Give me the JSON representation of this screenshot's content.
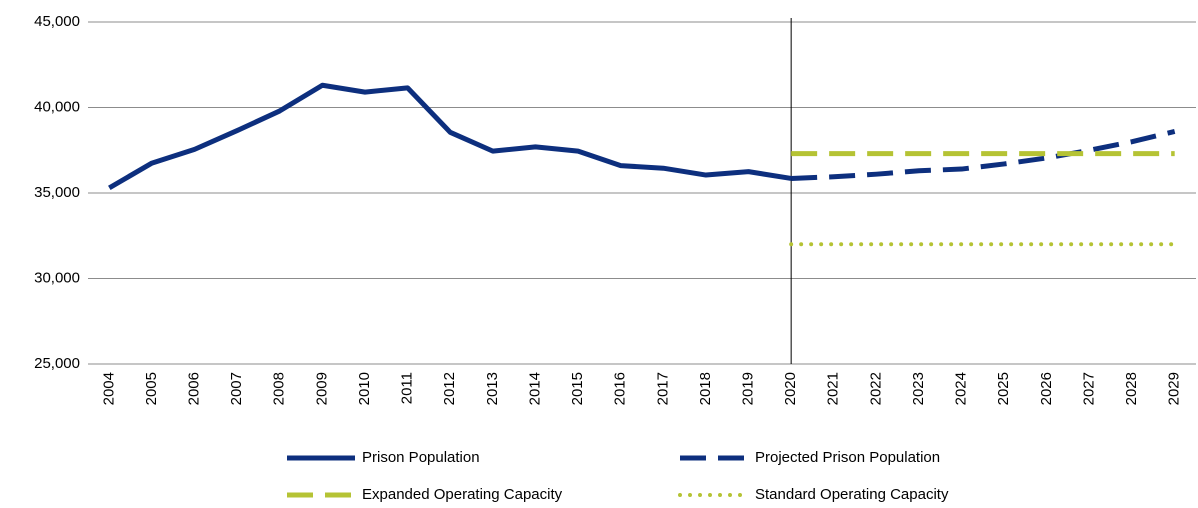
{
  "chart_data": {
    "type": "line",
    "categories": [
      "2004",
      "2005",
      "2006",
      "2007",
      "2008",
      "2009",
      "2010",
      "2011",
      "2012",
      "2013",
      "2014",
      "2015",
      "2016",
      "2017",
      "2018",
      "2019",
      "2020",
      "2021",
      "2022",
      "2023",
      "2024",
      "2025",
      "2026",
      "2027",
      "2028",
      "2029"
    ],
    "series": [
      {
        "name": "Prison Population",
        "color": "#0d2f7e",
        "line_style": "solid",
        "values": [
          35300,
          36750,
          37550,
          38650,
          39800,
          41300,
          40900,
          41150,
          38550,
          37450,
          37700,
          37450,
          36600,
          36450,
          36050,
          36250,
          35850,
          null,
          null,
          null,
          null,
          null,
          null,
          null,
          null,
          null
        ]
      },
      {
        "name": "Projected Prison Population",
        "color": "#0d2f7e",
        "line_style": "dashed",
        "values": [
          null,
          null,
          null,
          null,
          null,
          null,
          null,
          null,
          null,
          null,
          null,
          null,
          null,
          null,
          null,
          null,
          35850,
          35950,
          36100,
          36300,
          36400,
          36700,
          37050,
          37500,
          38000,
          38600
        ]
      },
      {
        "name": "Expanded Operating Capacity",
        "color": "#b5c334",
        "line_style": "dashed",
        "values": [
          null,
          null,
          null,
          null,
          null,
          null,
          null,
          null,
          null,
          null,
          null,
          null,
          null,
          null,
          null,
          null,
          37300,
          37300,
          37300,
          37300,
          37300,
          37300,
          37300,
          37300,
          37300,
          37300
        ]
      },
      {
        "name": "Standard Operating Capacity",
        "color": "#b5c334",
        "line_style": "dotted",
        "values": [
          null,
          null,
          null,
          null,
          null,
          null,
          null,
          null,
          null,
          null,
          null,
          null,
          null,
          null,
          null,
          null,
          32000,
          32000,
          32000,
          32000,
          32000,
          32000,
          32000,
          32000,
          32000,
          32000
        ]
      }
    ],
    "ylim": [
      25000,
      45000
    ],
    "yticks": [
      {
        "value": 25000,
        "label": "25,000"
      },
      {
        "value": 30000,
        "label": "30,000"
      },
      {
        "value": 35000,
        "label": "35,000"
      },
      {
        "value": 40000,
        "label": "40,000"
      },
      {
        "value": 45000,
        "label": "45,000"
      }
    ],
    "grid": true,
    "legend": "bottom"
  }
}
